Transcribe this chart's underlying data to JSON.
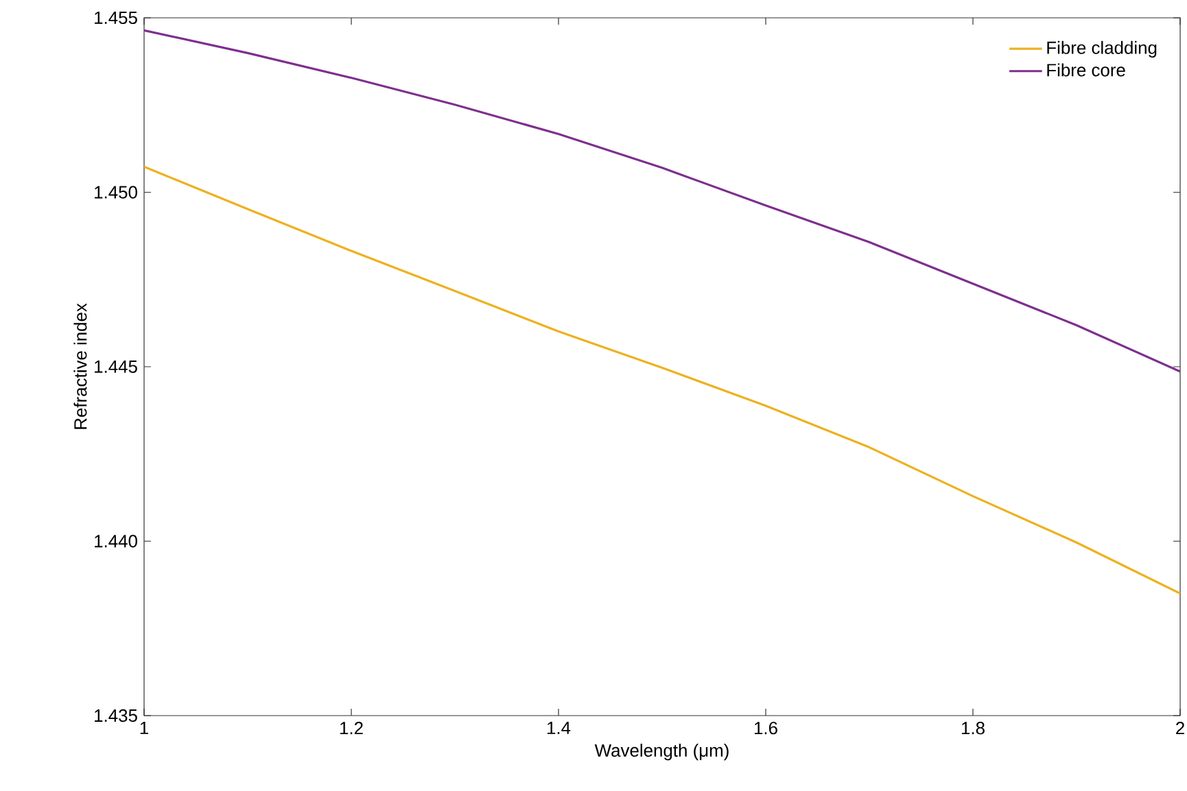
{
  "chart_data": {
    "type": "line",
    "xlabel": "Wavelength (μm)",
    "ylabel": "Refractive index",
    "x": [
      1,
      1.1,
      1.2,
      1.3,
      1.4,
      1.5,
      1.6,
      1.7,
      1.8,
      1.9,
      2
    ],
    "series": [
      {
        "name": "Fibre cladding",
        "color": "#edb120",
        "values": [
          1.45073,
          1.44952,
          1.44832,
          1.44717,
          1.44601,
          1.44497,
          1.44388,
          1.44269,
          1.44129,
          1.43996,
          1.4385
        ]
      },
      {
        "name": "Fibre core",
        "color": "#7e2f8e",
        "values": [
          1.45464,
          1.45399,
          1.45328,
          1.45251,
          1.45167,
          1.4507,
          1.44962,
          1.44857,
          1.44738,
          1.44619,
          1.44486
        ]
      }
    ],
    "xlim": [
      1,
      2
    ],
    "ylim": [
      1.435,
      1.455
    ],
    "xticks": [
      1,
      1.2,
      1.4,
      1.6,
      1.8,
      2
    ],
    "yticks": [
      1.435,
      {
        "value": 1.44,
        "label": "1.440"
      },
      1.445,
      {
        "value": 1.45,
        "label": "1.450"
      },
      1.455
    ],
    "grid": false,
    "legend": "top right",
    "marker": "none",
    "line_style": "solid"
  }
}
